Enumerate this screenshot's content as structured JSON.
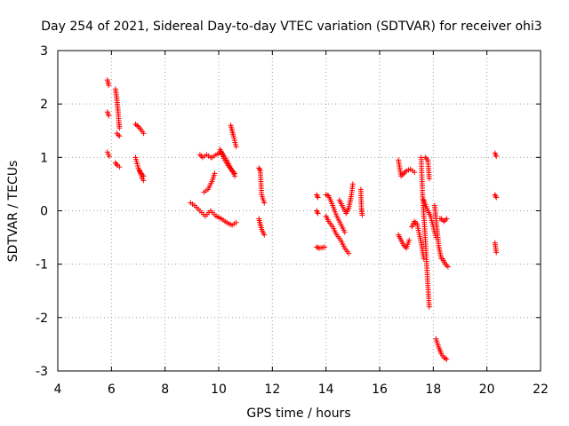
{
  "chart_data": {
    "type": "scatter",
    "title": "Day 254 of 2021, Sidereal Day-to-day VTEC variation (SDTVAR) for receiver ohi3",
    "xlabel": "GPS time / hours",
    "ylabel": "SDTVAR / TECUs",
    "xlim": [
      4,
      22
    ],
    "ylim": [
      -3,
      3
    ],
    "xticks": [
      4,
      6,
      8,
      10,
      12,
      14,
      16,
      18,
      20,
      22
    ],
    "yticks": [
      -3,
      -2,
      -1,
      0,
      1,
      2,
      3
    ],
    "xtick_labels": [
      "4",
      "6",
      "8",
      "10",
      "12",
      "14",
      "16",
      "18",
      "20",
      "22"
    ],
    "ytick_labels": [
      "-3",
      "-2",
      "-1",
      "0",
      "1",
      "2",
      "3"
    ],
    "grid": true,
    "marker": "+",
    "color": "#ff0000",
    "series": [
      {
        "name": "ohi3",
        "segments": [
          {
            "x": [
              5.85,
              5.9
            ],
            "y": [
              2.45,
              2.35
            ]
          },
          {
            "x": [
              5.85,
              5.9
            ],
            "y": [
              1.85,
              1.78
            ]
          },
          {
            "x": [
              5.85,
              5.92
            ],
            "y": [
              1.1,
              1.02
            ]
          },
          {
            "x": [
              6.15,
              6.2,
              6.25,
              6.28,
              6.3
            ],
            "y": [
              2.28,
              2.1,
              1.85,
              1.65,
              1.55
            ]
          },
          {
            "x": [
              6.2,
              6.25,
              6.3
            ],
            "y": [
              1.45,
              1.42,
              1.4
            ]
          },
          {
            "x": [
              6.15,
              6.22,
              6.3
            ],
            "y": [
              0.9,
              0.85,
              0.82
            ]
          },
          {
            "x": [
              6.9,
              7.0,
              7.1,
              7.2
            ],
            "y": [
              1.62,
              1.58,
              1.52,
              1.45
            ]
          },
          {
            "x": [
              6.9,
              7.0,
              7.1,
              7.2
            ],
            "y": [
              1.0,
              0.8,
              0.7,
              0.65
            ]
          },
          {
            "x": [
              7.05,
              7.15,
              7.2
            ],
            "y": [
              0.75,
              0.6,
              0.57
            ]
          },
          {
            "x": [
              8.95,
              9.1,
              9.3,
              9.5,
              9.7,
              9.9,
              10.1,
              10.3,
              10.5,
              10.65
            ],
            "y": [
              0.15,
              0.1,
              0.0,
              -0.1,
              0.0,
              -0.1,
              -0.15,
              -0.22,
              -0.27,
              -0.22
            ]
          },
          {
            "x": [
              9.3,
              9.4,
              9.55,
              9.7
            ],
            "y": [
              1.05,
              1.0,
              1.05,
              1.0
            ]
          },
          {
            "x": [
              9.45,
              9.6,
              9.75,
              9.85
            ],
            "y": [
              0.35,
              0.4,
              0.55,
              0.7
            ]
          },
          {
            "x": [
              9.75,
              9.9,
              10.1,
              10.3,
              10.45,
              10.6
            ],
            "y": [
              1.0,
              1.05,
              1.1,
              0.95,
              0.8,
              0.65
            ]
          },
          {
            "x": [
              10.05,
              10.2,
              10.35,
              10.5,
              10.6
            ],
            "y": [
              1.15,
              0.98,
              0.85,
              0.75,
              0.7
            ]
          },
          {
            "x": [
              10.45,
              10.5,
              10.55,
              10.65
            ],
            "y": [
              1.6,
              1.5,
              1.4,
              1.2
            ]
          },
          {
            "x": [
              11.5,
              11.55,
              11.6,
              11.7
            ],
            "y": [
              0.8,
              0.75,
              0.3,
              0.15
            ]
          },
          {
            "x": [
              11.5,
              11.55,
              11.6,
              11.7
            ],
            "y": [
              -0.15,
              -0.25,
              -0.35,
              -0.45
            ]
          },
          {
            "x": [
              13.65,
              13.7
            ],
            "y": [
              0.3,
              0.25
            ]
          },
          {
            "x": [
              13.65,
              13.7
            ],
            "y": [
              -0.0,
              -0.05
            ]
          },
          {
            "x": [
              13.65,
              13.75,
              13.95
            ],
            "y": [
              -0.68,
              -0.7,
              -0.68
            ]
          },
          {
            "x": [
              14.0,
              14.1,
              14.25,
              14.4,
              14.55,
              14.7
            ],
            "y": [
              0.3,
              0.28,
              0.1,
              -0.1,
              -0.25,
              -0.4
            ]
          },
          {
            "x": [
              14.0,
              14.1,
              14.25,
              14.4,
              14.55,
              14.7,
              14.85
            ],
            "y": [
              -0.1,
              -0.2,
              -0.3,
              -0.45,
              -0.55,
              -0.7,
              -0.8
            ]
          },
          {
            "x": [
              14.5,
              14.6,
              14.75,
              14.85,
              14.95,
              15.0
            ],
            "y": [
              0.2,
              0.1,
              -0.05,
              0.05,
              0.3,
              0.5
            ]
          },
          {
            "x": [
              15.3,
              15.32,
              15.35
            ],
            "y": [
              0.4,
              0.05,
              -0.08
            ]
          },
          {
            "x": [
              16.7,
              16.8,
              16.9,
              17.0,
              17.1
            ],
            "y": [
              -0.45,
              -0.55,
              -0.65,
              -0.7,
              -0.55
            ]
          },
          {
            "x": [
              16.7,
              16.75,
              16.8,
              16.9,
              17.0,
              17.15,
              17.3
            ],
            "y": [
              0.95,
              0.8,
              0.65,
              0.7,
              0.75,
              0.78,
              0.72
            ]
          },
          {
            "x": [
              17.2,
              17.3,
              17.4,
              17.55,
              17.65
            ],
            "y": [
              -0.3,
              -0.2,
              -0.25,
              -0.6,
              -0.9
            ]
          },
          {
            "x": [
              17.55,
              17.6,
              17.7,
              17.8,
              17.85
            ],
            "y": [
              1.0,
              0.3,
              -0.5,
              -1.4,
              -1.8
            ]
          },
          {
            "x": [
              17.7,
              17.8,
              17.85
            ],
            "y": [
              1.0,
              0.95,
              0.6
            ]
          },
          {
            "x": [
              17.65,
              17.8,
              17.9,
              18.0,
              18.1
            ],
            "y": [
              0.2,
              0.0,
              -0.1,
              -0.3,
              -0.5
            ]
          },
          {
            "x": [
              18.05,
              18.1,
              18.2,
              18.3
            ],
            "y": [
              0.1,
              -0.15,
              -0.65,
              -0.9
            ]
          },
          {
            "x": [
              18.25,
              18.3,
              18.4,
              18.5
            ],
            "y": [
              -0.15,
              -0.15,
              -0.2,
              -0.15
            ]
          },
          {
            "x": [
              18.35,
              18.45,
              18.55
            ],
            "y": [
              -0.9,
              -1.0,
              -1.05
            ]
          },
          {
            "x": [
              18.1,
              18.2,
              18.3,
              18.4,
              18.5
            ],
            "y": [
              -2.4,
              -2.55,
              -2.68,
              -2.75,
              -2.78
            ]
          },
          {
            "x": [
              20.3,
              20.35
            ],
            "y": [
              1.08,
              1.02
            ]
          },
          {
            "x": [
              20.3,
              20.35
            ],
            "y": [
              0.3,
              0.25
            ]
          },
          {
            "x": [
              20.3,
              20.35
            ],
            "y": [
              -0.6,
              -0.78
            ]
          }
        ]
      }
    ]
  }
}
